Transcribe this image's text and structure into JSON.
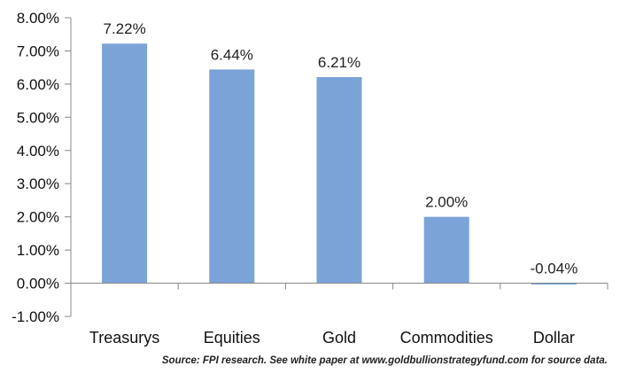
{
  "chart_data": {
    "type": "bar",
    "title": "",
    "xlabel": "",
    "ylabel": "",
    "categories": [
      "Treasurys",
      "Equities",
      "Gold",
      "Commodities",
      "Dollar"
    ],
    "values": [
      7.22,
      6.44,
      6.21,
      2.0,
      -0.04
    ],
    "data_labels": [
      "7.22%",
      "6.44%",
      "6.21%",
      "2.00%",
      "-0.04%"
    ],
    "ylim": [
      -1,
      8
    ],
    "y_ticks": [
      8,
      7,
      6,
      5,
      4,
      3,
      2,
      1,
      0,
      -1
    ],
    "y_tick_labels": [
      "8.00%",
      "7.00%",
      "6.00%",
      "5.00%",
      "4.00%",
      "3.00%",
      "2.00%",
      "1.00%",
      "0.00%",
      "-1.00%"
    ],
    "bar_color": "#7ba3d8",
    "grid": false,
    "legend": "none"
  },
  "source_note": "Source: FPI research. See white paper at www.goldbullionstrategyfund.com for source data."
}
